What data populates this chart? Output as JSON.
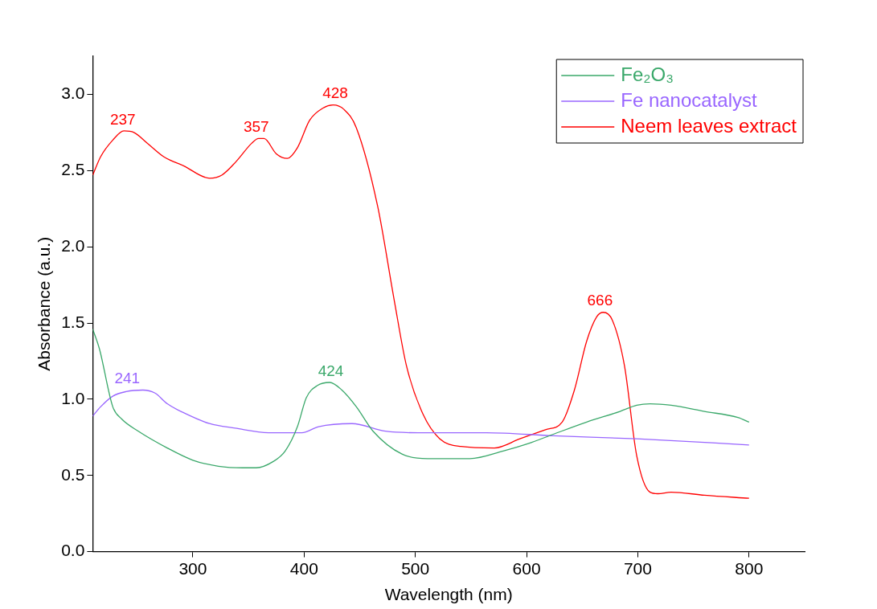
{
  "chart_data": {
    "type": "line",
    "xlabel": "Wavelength (nm)",
    "ylabel": "Absorbance (a.u.)",
    "xlim": [
      210,
      850
    ],
    "xticks": [
      300,
      400,
      500,
      600,
      700,
      800
    ],
    "ylim": [
      0,
      3.25
    ],
    "yticks": [
      {
        "value": 0,
        "label": "0.0"
      },
      {
        "value": 0.5,
        "label": "0.5"
      },
      {
        "value": 1,
        "label": "1.0"
      },
      {
        "value": 1.5,
        "label": "1.5"
      },
      {
        "value": 2,
        "label": "2.0"
      },
      {
        "value": 2.5,
        "label": "2.5"
      },
      {
        "value": 3,
        "label": "3.0"
      }
    ],
    "grid": false,
    "legend": "top right",
    "marker": "none",
    "line_style": "solid",
    "series": [
      {
        "name": "Fe₂O₃",
        "color": "#3aa86a",
        "x": [
          210,
          216,
          228,
          236,
          251,
          277,
          300,
          323,
          345,
          357,
          372,
          383,
          394,
          402,
          412,
          423,
          434,
          447,
          462,
          488,
          511,
          549,
          579,
          602,
          624,
          654,
          684,
          699,
          711,
          730,
          760,
          790,
          800
        ],
        "values": [
          1.46,
          1.33,
          0.95,
          0.87,
          0.79,
          0.68,
          0.6,
          0.56,
          0.55,
          0.55,
          0.59,
          0.66,
          0.82,
          1.01,
          1.09,
          1.11,
          1.06,
          0.95,
          0.79,
          0.64,
          0.61,
          0.61,
          0.66,
          0.71,
          0.77,
          0.85,
          0.92,
          0.96,
          0.97,
          0.96,
          0.92,
          0.88,
          0.85
        ]
      },
      {
        "name": "Fe nanocatalyst",
        "color": "#9966ff",
        "x": [
          210,
          217,
          228,
          240,
          255,
          266,
          277,
          292,
          315,
          338,
          368,
          398,
          413,
          443,
          473,
          503,
          564,
          624,
          699,
          800
        ],
        "values": [
          0.89,
          0.95,
          1.02,
          1.05,
          1.06,
          1.04,
          0.97,
          0.91,
          0.84,
          0.81,
          0.78,
          0.78,
          0.82,
          0.84,
          0.79,
          0.78,
          0.78,
          0.76,
          0.74,
          0.7
        ]
      },
      {
        "name": "Neem leaves extract",
        "color": "#ff0000",
        "x": [
          210,
          217,
          228,
          238,
          247,
          259,
          274,
          292,
          315,
          326,
          339,
          353,
          359,
          364,
          375,
          385,
          394,
          405,
          417,
          426,
          436,
          447,
          466,
          481,
          492,
          507,
          522,
          541,
          571,
          594,
          617,
          632,
          643,
          654,
          663,
          669,
          677,
          688,
          699,
          711,
          718,
          730,
          760,
          800
        ],
        "values": [
          2.47,
          2.59,
          2.7,
          2.76,
          2.75,
          2.68,
          2.59,
          2.53,
          2.45,
          2.47,
          2.56,
          2.68,
          2.71,
          2.71,
          2.61,
          2.58,
          2.65,
          2.83,
          2.91,
          2.93,
          2.9,
          2.78,
          2.27,
          1.65,
          1.22,
          0.9,
          0.74,
          0.69,
          0.68,
          0.74,
          0.8,
          0.85,
          1.06,
          1.38,
          1.54,
          1.57,
          1.52,
          1.22,
          0.63,
          0.39,
          0.38,
          0.39,
          0.37,
          0.35
        ]
      }
    ],
    "annotations": [
      {
        "text": "237",
        "x": 237,
        "y": 2.76
      },
      {
        "text": "357",
        "x": 357,
        "y": 2.71
      },
      {
        "text": "428",
        "x": 428,
        "y": 2.93
      },
      {
        "text": "666",
        "x": 666,
        "y": 1.57
      },
      {
        "text": "241",
        "x": 241,
        "y": 1.06
      },
      {
        "text": "424",
        "x": 424,
        "y": 1.11
      }
    ]
  }
}
